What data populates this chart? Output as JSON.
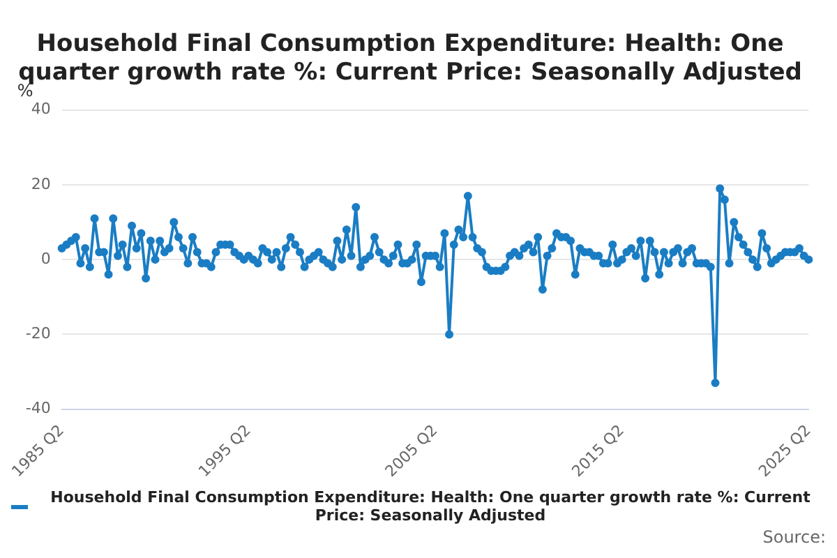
{
  "chart_data": {
    "type": "line",
    "title": "Household Final Consumption Expenditure: Health: One quarter growth rate %: Current Price: Seasonally Adjusted",
    "ylabel": "%",
    "categories": [
      "1985 Q2",
      null,
      null,
      null,
      null,
      null,
      null,
      null,
      null,
      null,
      null,
      null,
      null,
      null,
      null,
      null,
      null,
      null,
      null,
      null,
      null,
      null,
      null,
      null,
      null,
      null,
      null,
      null,
      null,
      null,
      null,
      null,
      null,
      null,
      null,
      null,
      null,
      null,
      null,
      null,
      "1995 Q2",
      null,
      null,
      null,
      null,
      null,
      null,
      null,
      null,
      null,
      null,
      null,
      null,
      null,
      null,
      null,
      null,
      null,
      null,
      null,
      null,
      null,
      null,
      null,
      null,
      null,
      null,
      null,
      null,
      null,
      null,
      null,
      null,
      null,
      null,
      null,
      null,
      null,
      null,
      null,
      "2005 Q2",
      null,
      null,
      null,
      null,
      null,
      null,
      null,
      null,
      null,
      null,
      null,
      null,
      null,
      null,
      null,
      null,
      null,
      null,
      null,
      null,
      null,
      null,
      null,
      null,
      null,
      null,
      null,
      null,
      null,
      null,
      null,
      null,
      null,
      null,
      null,
      null,
      null,
      null,
      null,
      "2015 Q2",
      null,
      null,
      null,
      null,
      null,
      null,
      null,
      null,
      null,
      null,
      null,
      null,
      null,
      null,
      null,
      null,
      null,
      null,
      null,
      null,
      null,
      null,
      null,
      null,
      null,
      null,
      null,
      null,
      null,
      null,
      null,
      null,
      null,
      null,
      null,
      null,
      null,
      null,
      null,
      "2025 Q2"
    ],
    "series": [
      {
        "name": "Household Final Consumption Expenditure: Health: One quarter growth rate %: Current Price: Seasonally Adjusted",
        "color": "#1a7dc4",
        "values": [
          3,
          4,
          5,
          6,
          -1,
          3,
          -2,
          11,
          2,
          2,
          -4,
          11,
          1,
          4,
          -2,
          9,
          3,
          7,
          -5,
          5,
          0,
          5,
          2,
          3,
          10,
          6,
          3,
          -1,
          6,
          2,
          -1,
          -1,
          -2,
          2,
          4,
          4,
          4,
          2,
          1,
          0,
          1,
          0,
          -1,
          3,
          2,
          0,
          2,
          -2,
          3,
          6,
          4,
          2,
          -2,
          0,
          1,
          2,
          0,
          -1,
          -2,
          5,
          0,
          8,
          1,
          14,
          -2,
          0,
          1,
          6,
          2,
          0,
          -1,
          1,
          4,
          -1,
          -1,
          0,
          4,
          -6,
          1,
          1,
          1,
          -2,
          7,
          -20,
          4,
          8,
          6,
          17,
          6,
          3,
          2,
          -2,
          -3,
          -3,
          -3,
          -2,
          1,
          2,
          1,
          3,
          4,
          2,
          6,
          -8,
          1,
          3,
          7,
          6,
          6,
          5,
          -4,
          3,
          2,
          2,
          1,
          1,
          -1,
          -1,
          4,
          -1,
          0,
          2,
          3,
          1,
          5,
          -5,
          5,
          2,
          -4,
          2,
          -1,
          2,
          3,
          -1,
          2,
          3,
          -1,
          -1,
          -1,
          -2,
          -33,
          19,
          16,
          -1,
          10,
          6,
          4,
          2,
          0,
          -2,
          7,
          3,
          -1,
          0,
          1,
          2,
          2,
          2,
          3,
          1,
          0
        ]
      }
    ],
    "ylim": [
      -40,
      40
    ],
    "yticks": [
      -40,
      -20,
      0,
      20,
      40
    ],
    "grid": "y",
    "legend": "bottom",
    "marker": "circle",
    "line_style": "solid",
    "annotations": [
      "Source:"
    ]
  }
}
